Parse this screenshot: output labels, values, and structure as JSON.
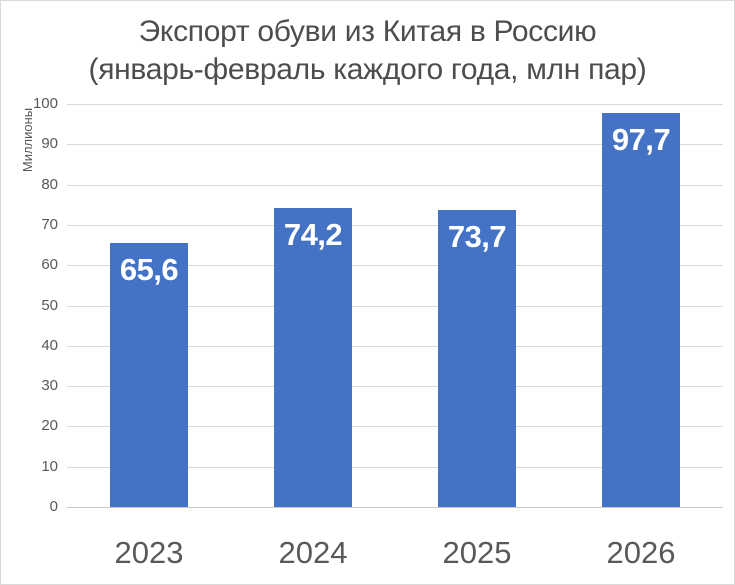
{
  "chart_data": {
    "type": "bar",
    "title_lines": [
      "Экспорт обуви из Китая в Россию",
      "(январь-февраль каждого года, млн пар)"
    ],
    "ylabel": "Миллионы",
    "categories": [
      "2023",
      "2024",
      "2025",
      "2026"
    ],
    "values": [
      65.6,
      74.2,
      73.7,
      97.7
    ],
    "data_labels": [
      "65,6",
      "74,2",
      "73,7",
      "97,7"
    ],
    "ylim": [
      0,
      100
    ],
    "ytick_step": 10,
    "ytick_labels": [
      "0",
      "10",
      "20",
      "30",
      "40",
      "50",
      "60",
      "70",
      "80",
      "90",
      "100"
    ],
    "grid": true,
    "legend": "none",
    "colors": {
      "bar": "#4472C4",
      "data_label": "#FFFFFF",
      "gridline": "#D9D9D9",
      "axis_line": "#C8C8C8",
      "title": "#4D4D4D",
      "tick_label": "#595959",
      "x_label": "#595959",
      "y_axis_title": "#595959",
      "frame_border": "#D9D9D9",
      "background": "#FFFFFF"
    }
  }
}
